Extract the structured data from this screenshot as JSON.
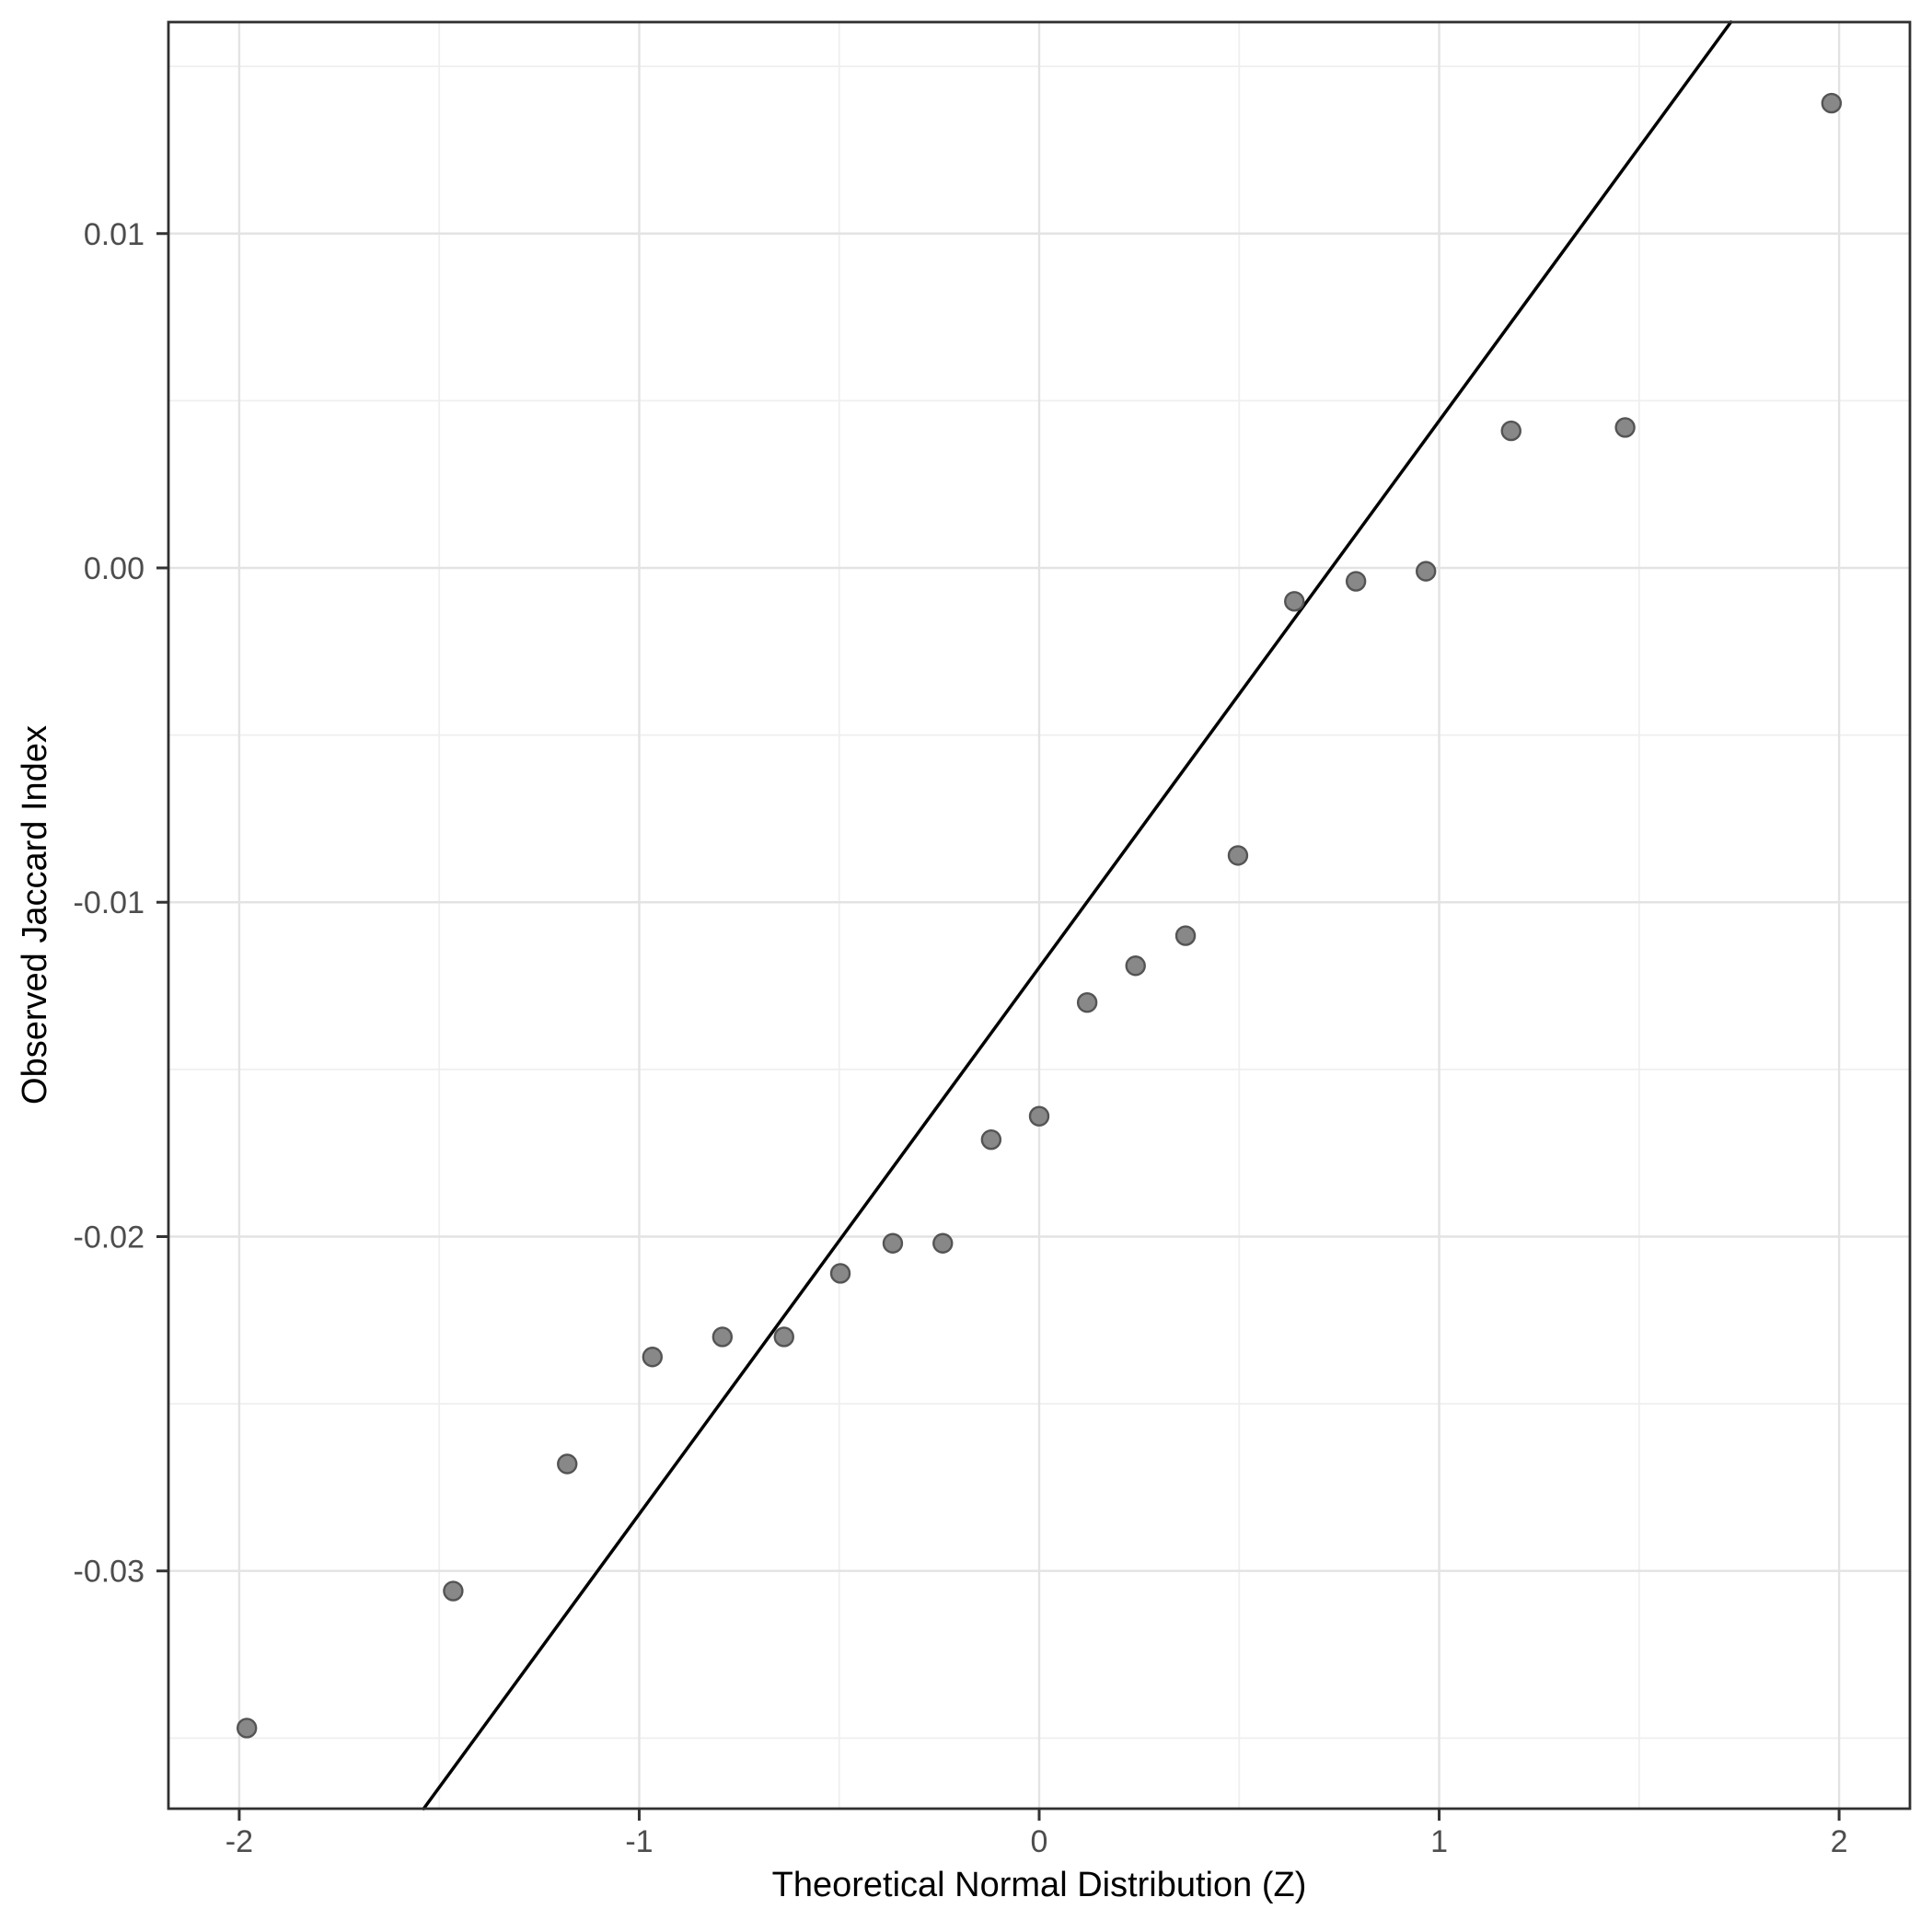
{
  "chart_data": {
    "type": "scatter",
    "title": "",
    "xlabel": "Theoretical Normal Distribution (Z)",
    "ylabel": "Observed Jaccard Index",
    "xlim": [
      -2.177,
      2.177
    ],
    "ylim": [
      -0.03711,
      0.016325
    ],
    "grid": true,
    "legend_position": "none",
    "x_ticks": [
      -2,
      -1,
      0,
      1,
      2
    ],
    "x_tick_labels": [
      "-2",
      "-1",
      "0",
      "1",
      "2"
    ],
    "x_minor_gridlines": [
      -1.5,
      -0.5,
      0.5,
      1.5
    ],
    "y_ticks": [
      0.01,
      0.0,
      -0.01,
      -0.02,
      -0.03
    ],
    "y_tick_labels": [
      "0.01",
      "0.00",
      "-0.01",
      "-0.02",
      "-0.03"
    ],
    "y_minor_gridlines": [
      0.015,
      0.005,
      -0.005,
      -0.015,
      -0.025,
      -0.035
    ],
    "points": [
      {
        "z": -1.981,
        "observed": -0.0347
      },
      {
        "z": -1.465,
        "observed": -0.0306
      },
      {
        "z": -1.18,
        "observed": -0.0268
      },
      {
        "z": -0.967,
        "observed": -0.0236
      },
      {
        "z": -0.792,
        "observed": -0.023
      },
      {
        "z": -0.638,
        "observed": -0.023
      },
      {
        "z": -0.497,
        "observed": -0.0211
      },
      {
        "z": -0.366,
        "observed": -0.0202
      },
      {
        "z": -0.241,
        "observed": -0.0202
      },
      {
        "z": -0.12,
        "observed": -0.0171
      },
      {
        "z": 0.0,
        "observed": -0.0164
      },
      {
        "z": 0.12,
        "observed": -0.013
      },
      {
        "z": 0.241,
        "observed": -0.0119
      },
      {
        "z": 0.366,
        "observed": -0.011
      },
      {
        "z": 0.497,
        "observed": -0.0086
      },
      {
        "z": 0.638,
        "observed": -0.001
      },
      {
        "z": 0.792,
        "observed": -0.0004
      },
      {
        "z": 0.967,
        "observed": -0.0001
      },
      {
        "z": 1.18,
        "observed": 0.0041
      },
      {
        "z": 1.465,
        "observed": 0.0042
      },
      {
        "z": 1.981,
        "observed": 0.0139
      }
    ],
    "reference_line": {
      "slope": 0.01635,
      "intercept": -0.01195
    }
  },
  "colors": {
    "background": "#ffffff",
    "panel_border": "#303030",
    "grid_major": "#e3e3e3",
    "grid_minor": "#efefef",
    "tick_mark": "#333333",
    "tick_label": "#4d4d4d",
    "axis_title": "#000000",
    "point_fill": "#888888",
    "point_stroke": "#545454",
    "reference_line": "#000000"
  }
}
